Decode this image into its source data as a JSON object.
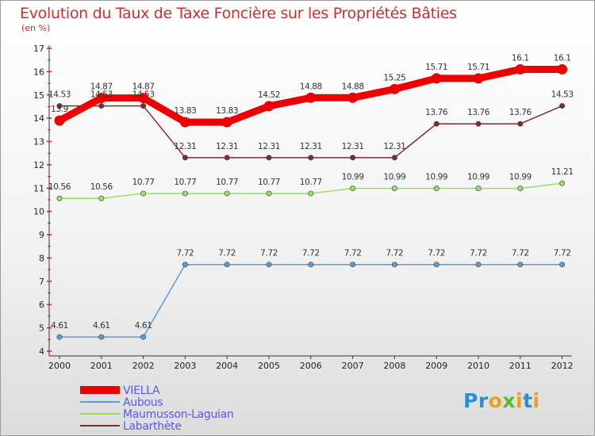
{
  "title": "Evolution du Taux de Taxe Foncière sur les Propriétés Bâties",
  "unit": "(en %)",
  "logo": {
    "letters": [
      "P",
      "r",
      "o",
      "x",
      "i",
      "t",
      "i"
    ],
    "colors": [
      "#2b8fd6",
      "#2b8fd6",
      "#e8a11c",
      "#5cb82e",
      "#e8a11c",
      "#2b8fd6",
      "#e8a11c"
    ]
  },
  "chart_data": {
    "type": "line",
    "x": [
      "2000",
      "2001",
      "2002",
      "2003",
      "2004",
      "2005",
      "2006",
      "2007",
      "2008",
      "2009",
      "2010",
      "2011",
      "2012"
    ],
    "ylim": [
      4,
      17
    ],
    "yticks": [
      "4",
      "5",
      "6",
      "7",
      "8",
      "9",
      "10",
      "11",
      "12",
      "13",
      "14",
      "15",
      "16",
      "17"
    ],
    "grid": false,
    "legend_position": "bottom-left",
    "series": [
      {
        "name": "VIELLA",
        "color": "#ee0000",
        "values": [
          13.9,
          14.87,
          14.87,
          13.83,
          13.83,
          14.52,
          14.88,
          14.88,
          15.25,
          15.71,
          15.71,
          16.1,
          16.1
        ],
        "labels": [
          "13.9",
          "14.87",
          "14.87",
          "13.83",
          "13.83",
          "14.52",
          "14.88",
          "14.88",
          "15.25",
          "15.71",
          "15.71",
          "16.1",
          "16.1"
        ]
      },
      {
        "name": "Aubous",
        "color": "#5b9bd5",
        "values": [
          4.61,
          4.61,
          4.61,
          7.72,
          7.72,
          7.72,
          7.72,
          7.72,
          7.72,
          7.72,
          7.72,
          7.72,
          7.72
        ],
        "labels": [
          "4.61",
          "4.61",
          "4.61",
          "7.72",
          "7.72",
          "7.72",
          "7.72",
          "7.72",
          "7.72",
          "7.72",
          "7.72",
          "7.72",
          "7.72"
        ]
      },
      {
        "name": "Maumusson-Laguian",
        "color": "#99dd66",
        "values": [
          10.56,
          10.56,
          10.77,
          10.77,
          10.77,
          10.77,
          10.77,
          10.99,
          10.99,
          10.99,
          10.99,
          10.99,
          11.21
        ],
        "labels": [
          "10.56",
          "10.56",
          "10.77",
          "10.77",
          "10.77",
          "10.77",
          "10.77",
          "10.99",
          "10.99",
          "10.99",
          "10.99",
          "10.99",
          "11.21"
        ]
      },
      {
        "name": "Labarthète",
        "color": "#7a2e2e",
        "values": [
          14.53,
          14.53,
          14.53,
          12.31,
          12.31,
          12.31,
          12.31,
          12.31,
          12.31,
          13.76,
          13.76,
          13.76,
          14.53
        ],
        "labels": [
          "14.53",
          "14.53",
          "14.53",
          "12.31",
          "12.31",
          "12.31",
          "12.31",
          "12.31",
          "12.31",
          "13.76",
          "13.76",
          "13.76",
          "14.53"
        ]
      }
    ]
  }
}
